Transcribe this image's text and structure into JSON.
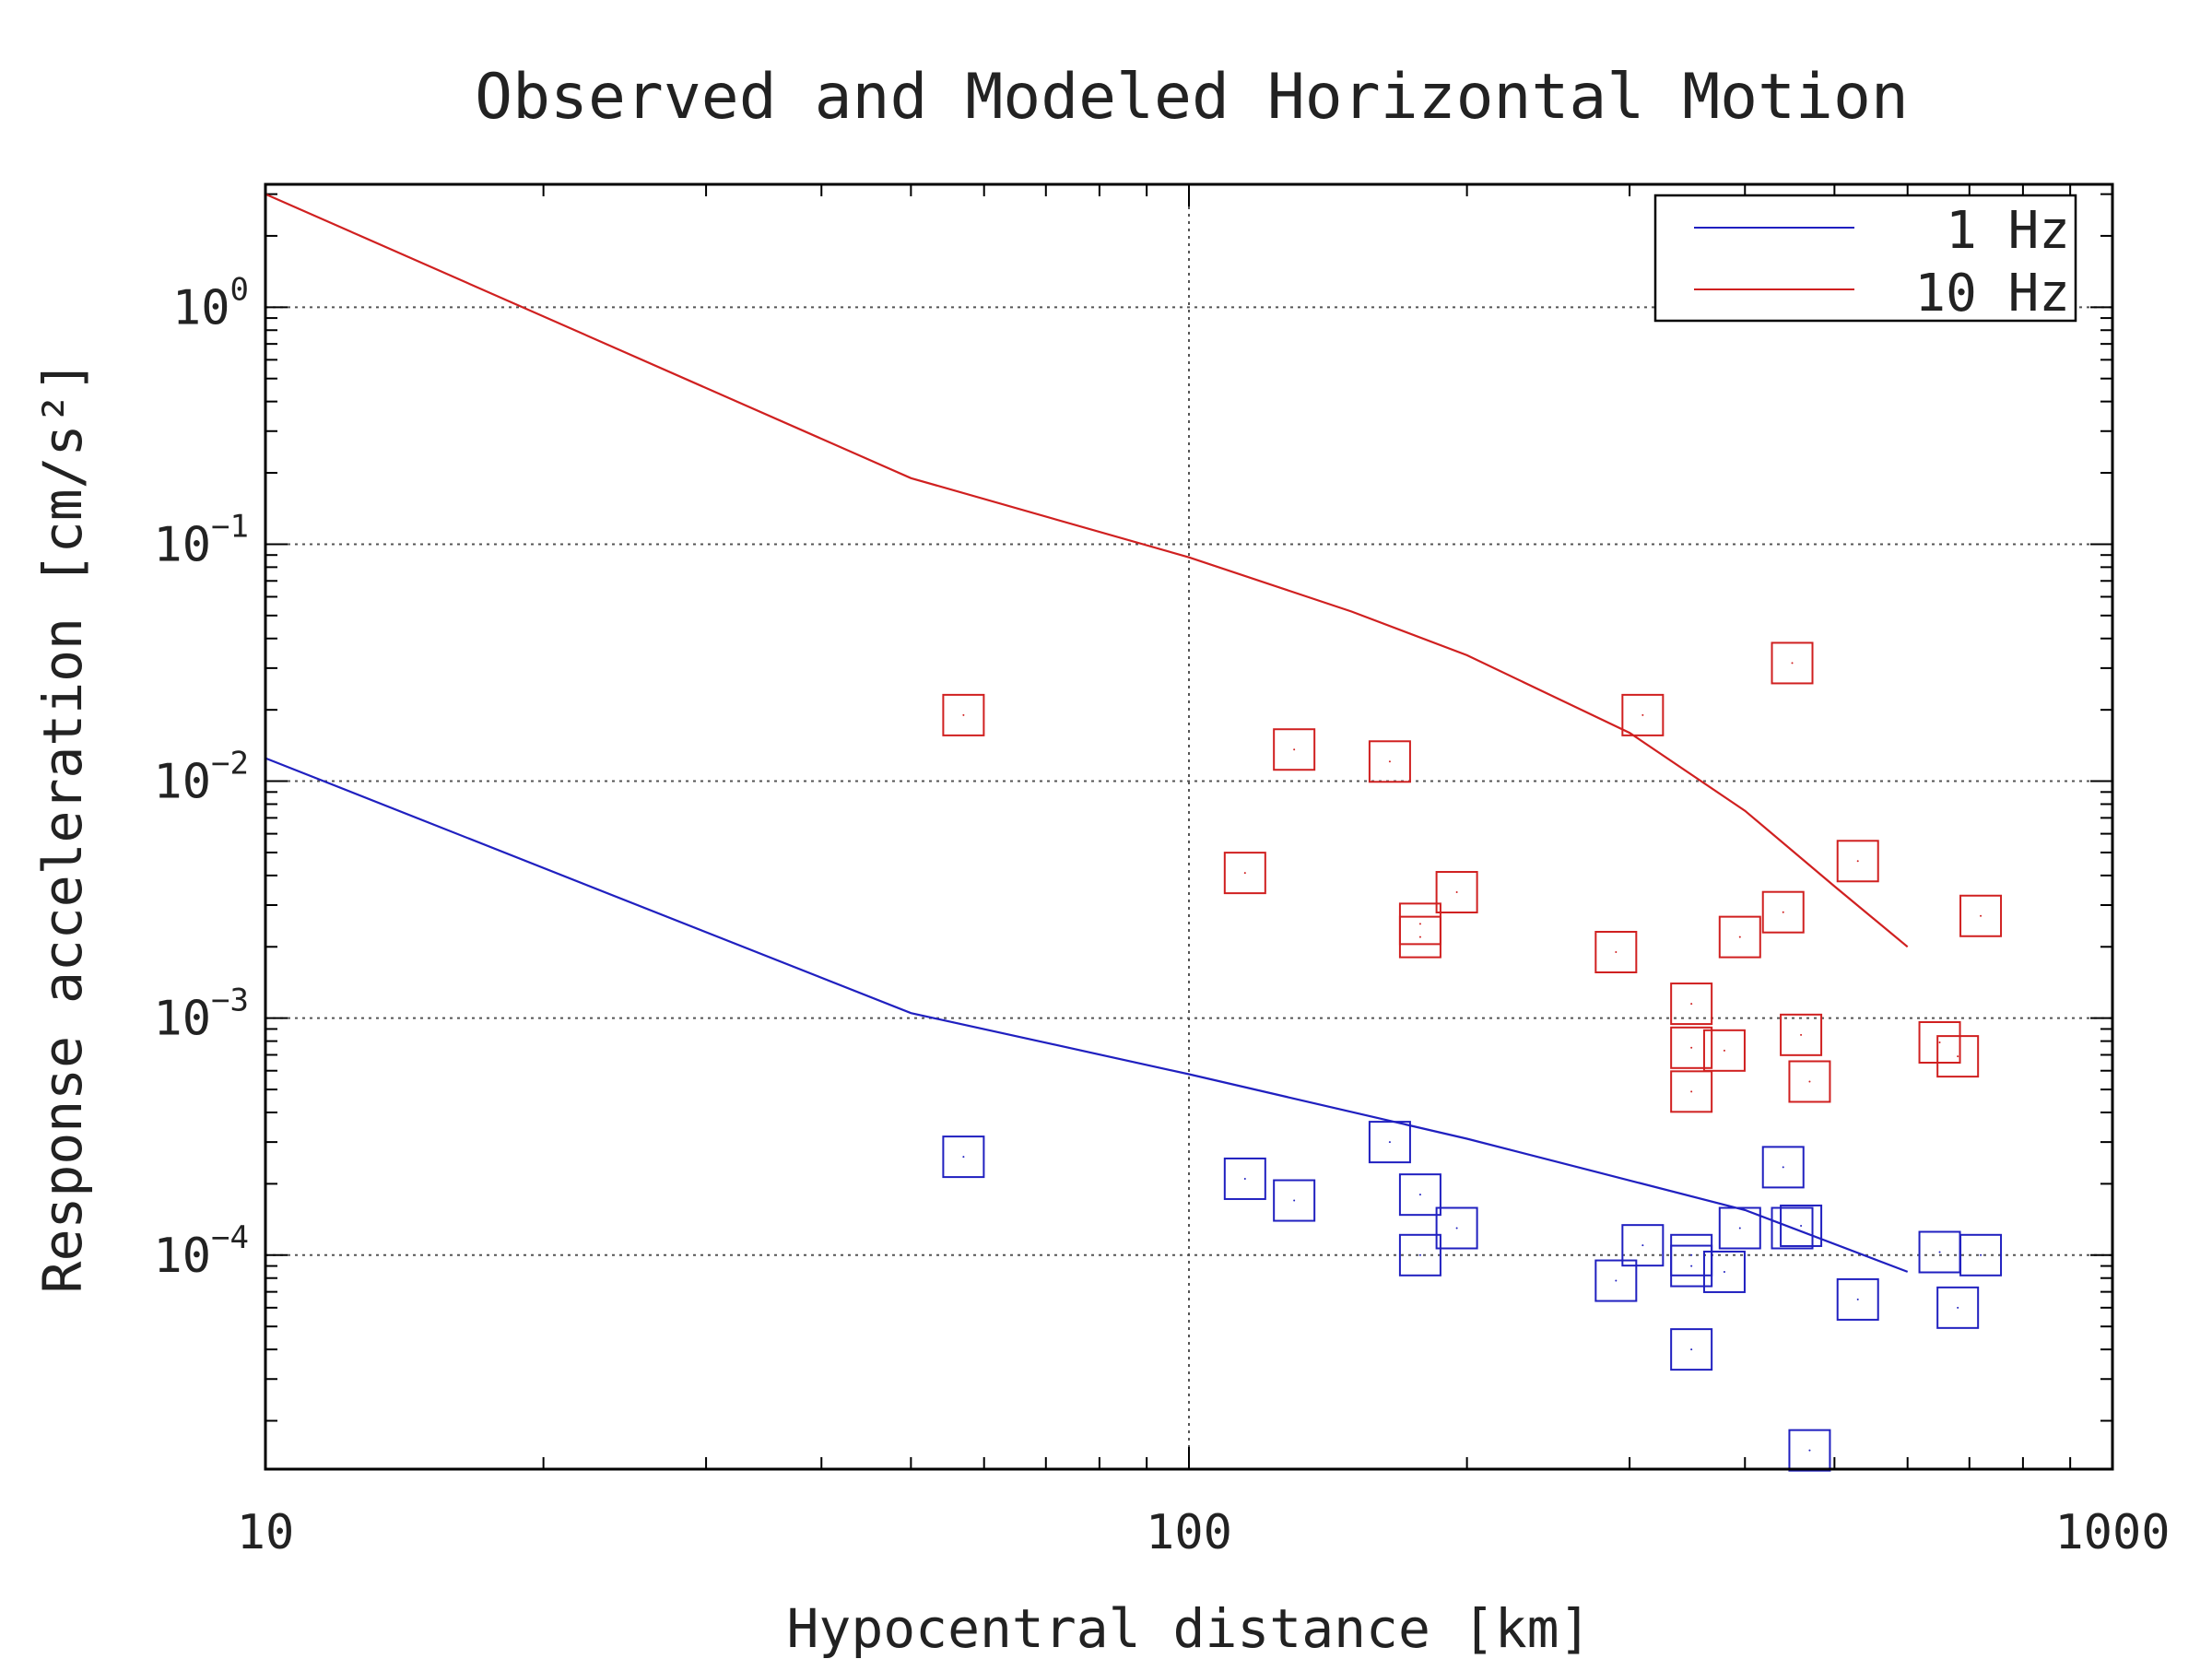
{
  "chart_data": {
    "type": "scatter",
    "title": "Observed and Modeled Horizontal Motion",
    "xlabel": "Hypocentral distance [km]",
    "ylabel": "Response acceleration [cm/s²]",
    "xscale": "log",
    "yscale": "log",
    "xlim": [
      10,
      1000
    ],
    "ylim": [
      1.25e-05,
      3.3
    ],
    "grid": true,
    "legend_position": "top-right",
    "x_tick_labels": [
      {
        "value": 10,
        "label": "10"
      },
      {
        "value": 100,
        "label": "100"
      },
      {
        "value": 1000,
        "label": "1000"
      }
    ],
    "y_tick_labels": [
      {
        "value": 1,
        "base": "10",
        "exp": "0"
      },
      {
        "value": 0.1,
        "base": "10",
        "exp": "−1"
      },
      {
        "value": 0.01,
        "base": "10",
        "exp": "−2"
      },
      {
        "value": 0.001,
        "base": "10",
        "exp": "−3"
      },
      {
        "value": 0.0001,
        "base": "10",
        "exp": "−4"
      }
    ],
    "series": [
      {
        "name": "1 Hz",
        "color": "#2020c0",
        "model": {
          "x": [
            10,
            50,
            100,
            200,
            400,
            600
          ],
          "y": [
            0.0125,
            0.00105,
            0.00058,
            0.00031,
            0.000155,
            8.5e-05
          ]
        },
        "observed": {
          "x": [
            57,
            115,
            130,
            165,
            178,
            178,
            195,
            290,
            310,
            350,
            350,
            350,
            380,
            395,
            440,
            450,
            460,
            470,
            530,
            650,
            680,
            720
          ],
          "y": [
            0.00026,
            0.00021,
            0.00017,
            0.0003,
            0.00018,
            0.0001,
            0.00013,
            7.8e-05,
            0.00011,
            0.0001,
            9e-05,
            4e-05,
            8.5e-05,
            0.00013,
            0.000235,
            0.00013,
            0.000133,
            1.5e-05,
            6.5e-05,
            0.000103,
            6e-05,
            0.0001
          ]
        }
      },
      {
        "name": "10 Hz",
        "color": "#d02020",
        "model": {
          "x": [
            10,
            50,
            100,
            150,
            200,
            300,
            400,
            500,
            600
          ],
          "y": [
            3.0,
            0.19,
            0.088,
            0.052,
            0.034,
            0.016,
            0.0075,
            0.0036,
            0.002
          ]
        },
        "observed": {
          "x": [
            57,
            115,
            130,
            165,
            178,
            178,
            195,
            290,
            310,
            350,
            350,
            350,
            380,
            395,
            440,
            450,
            460,
            470,
            530,
            650,
            680,
            720
          ],
          "y": [
            0.019,
            0.0041,
            0.0136,
            0.0121,
            0.0025,
            0.0022,
            0.0034,
            0.0019,
            0.019,
            0.00115,
            0.00075,
            0.00049,
            0.00073,
            0.0022,
            0.0028,
            0.0315,
            0.00085,
            0.00054,
            0.0046,
            0.00079,
            0.00069,
            0.0027
          ]
        }
      }
    ]
  }
}
